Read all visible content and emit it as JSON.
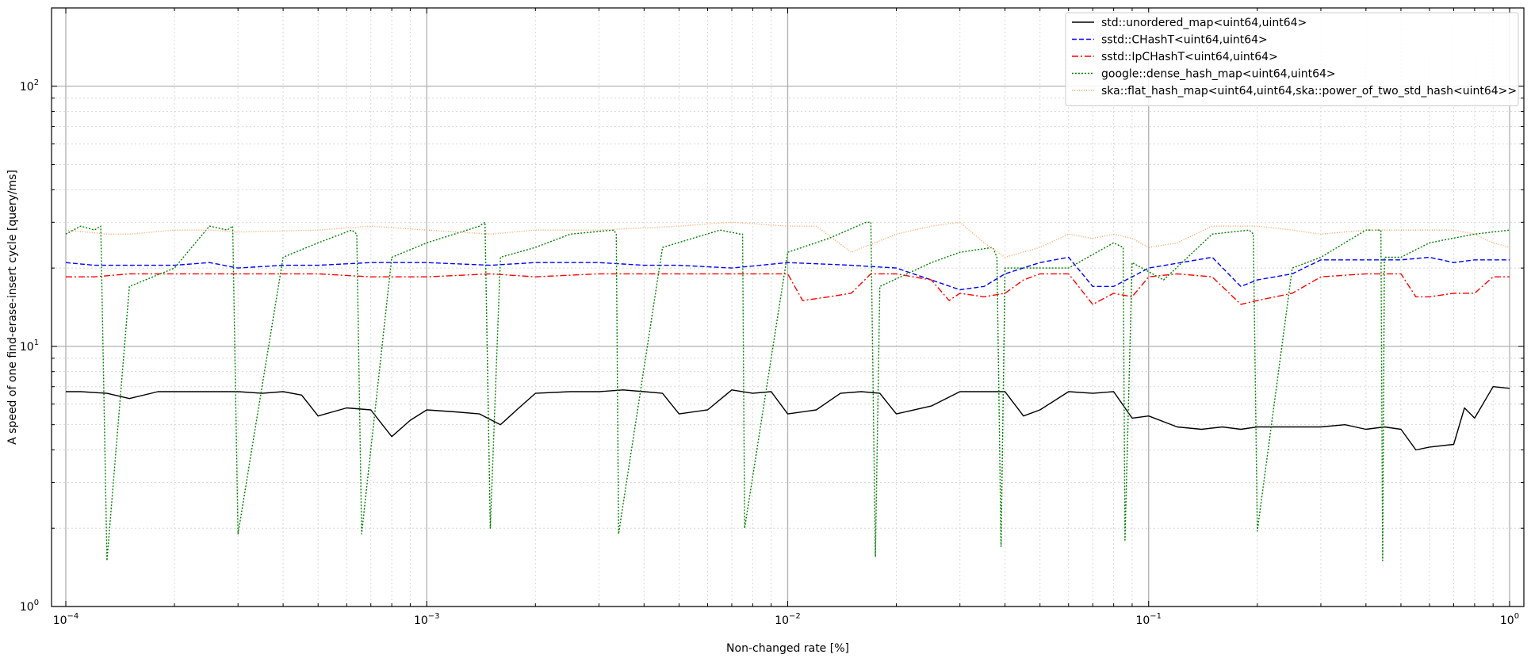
{
  "chart_data": {
    "type": "line",
    "title": "",
    "xlabel": "Non-changed rate [%]",
    "ylabel": "A speed of one find-erase-insert cycle [query/ms]",
    "x_scale": "log",
    "y_scale": "log",
    "xlim": [
      0.0001,
      1
    ],
    "ylim": [
      1,
      200
    ],
    "grid": true,
    "legend_position": "top-right",
    "x_ticks": [
      {
        "value": 0.0001,
        "base": "10",
        "exp": "−4"
      },
      {
        "value": 0.001,
        "base": "10",
        "exp": "−3"
      },
      {
        "value": 0.01,
        "base": "10",
        "exp": "−2"
      },
      {
        "value": 0.1,
        "base": "10",
        "exp": "−1"
      },
      {
        "value": 1,
        "base": "10",
        "exp": "0"
      }
    ],
    "y_ticks": [
      {
        "value": 1,
        "base": "10",
        "exp": "0"
      },
      {
        "value": 10,
        "base": "10",
        "exp": "1"
      },
      {
        "value": 100,
        "base": "10",
        "exp": "2"
      }
    ],
    "series": [
      {
        "name": "std::unordered_map<uint64,uint64>",
        "color": "#000000",
        "dash": "",
        "x": [
          0.0001,
          0.00011,
          0.00013,
          0.00015,
          0.00018,
          0.0002,
          0.00025,
          0.0003,
          0.00035,
          0.0004,
          0.00045,
          0.0005,
          0.0006,
          0.0007,
          0.0008,
          0.0009,
          0.001,
          0.0012,
          0.0014,
          0.0016,
          0.0018,
          0.002,
          0.0025,
          0.003,
          0.0035,
          0.004,
          0.0045,
          0.005,
          0.006,
          0.007,
          0.008,
          0.009,
          0.01,
          0.012,
          0.014,
          0.016,
          0.018,
          0.02,
          0.025,
          0.03,
          0.035,
          0.04,
          0.045,
          0.05,
          0.06,
          0.07,
          0.08,
          0.09,
          0.1,
          0.12,
          0.14,
          0.16,
          0.18,
          0.2,
          0.25,
          0.3,
          0.35,
          0.4,
          0.45,
          0.5,
          0.55,
          0.6,
          0.7,
          0.75,
          0.8,
          0.9,
          1.0
        ],
        "y": [
          6.7,
          6.7,
          6.6,
          6.3,
          6.7,
          6.7,
          6.7,
          6.7,
          6.6,
          6.7,
          6.5,
          5.4,
          5.8,
          5.7,
          4.5,
          5.2,
          5.7,
          5.6,
          5.5,
          5.0,
          5.8,
          6.6,
          6.7,
          6.7,
          6.8,
          6.7,
          6.6,
          5.5,
          5.7,
          6.8,
          6.6,
          6.7,
          5.5,
          5.7,
          6.6,
          6.7,
          6.6,
          5.5,
          5.9,
          6.7,
          6.7,
          6.7,
          5.4,
          5.7,
          6.7,
          6.6,
          6.7,
          5.3,
          5.4,
          4.9,
          4.8,
          4.9,
          4.8,
          4.9,
          4.9,
          4.9,
          5.0,
          4.8,
          4.9,
          4.8,
          4.0,
          4.1,
          4.2,
          5.8,
          5.3,
          7.0,
          6.9
        ]
      },
      {
        "name": "sstd::CHashT<uint64,uint64>",
        "color": "#0000ff",
        "dash": "6,3",
        "x": [
          0.0001,
          0.00012,
          0.00015,
          0.0002,
          0.00025,
          0.0003,
          0.0004,
          0.0005,
          0.0007,
          0.001,
          0.0015,
          0.002,
          0.003,
          0.004,
          0.005,
          0.007,
          0.01,
          0.015,
          0.02,
          0.025,
          0.03,
          0.035,
          0.04,
          0.05,
          0.06,
          0.07,
          0.08,
          0.09,
          0.1,
          0.15,
          0.18,
          0.2,
          0.25,
          0.3,
          0.4,
          0.5,
          0.6,
          0.7,
          0.8,
          0.9,
          1.0
        ],
        "y": [
          21,
          20.5,
          20.5,
          20.5,
          21,
          20,
          20.5,
          20.5,
          21,
          21,
          20.5,
          21,
          21,
          20.5,
          20.5,
          20,
          21,
          20.5,
          20,
          18,
          16.5,
          17,
          19,
          21,
          22,
          17,
          17,
          18.5,
          20,
          22,
          17,
          18,
          19,
          21.5,
          21.5,
          21.5,
          22,
          21,
          21.5,
          21.5,
          21.5
        ]
      },
      {
        "name": "sstd::IpCHashT<uint64,uint64>",
        "color": "#ff0000",
        "dash": "8,3,2,3",
        "x": [
          0.0001,
          0.00012,
          0.00015,
          0.0002,
          0.0003,
          0.0004,
          0.0005,
          0.0007,
          0.001,
          0.0015,
          0.002,
          0.003,
          0.004,
          0.005,
          0.007,
          0.01,
          0.011,
          0.013,
          0.015,
          0.017,
          0.02,
          0.025,
          0.028,
          0.03,
          0.035,
          0.04,
          0.045,
          0.05,
          0.06,
          0.07,
          0.08,
          0.09,
          0.1,
          0.12,
          0.15,
          0.18,
          0.2,
          0.25,
          0.3,
          0.4,
          0.5,
          0.55,
          0.6,
          0.7,
          0.8,
          0.9,
          1.0
        ],
        "y": [
          18.5,
          18.5,
          19,
          19,
          19,
          19,
          19,
          18.5,
          18.5,
          19,
          18.5,
          19,
          19,
          19,
          19,
          19,
          15,
          15.5,
          16,
          19,
          19,
          18,
          15,
          16,
          15.5,
          16,
          18,
          19,
          19,
          14.5,
          16,
          15.5,
          18.5,
          19,
          18.5,
          14.5,
          15,
          16,
          18.5,
          19,
          19,
          15.5,
          15.5,
          16,
          16,
          18.5,
          18.5
        ]
      },
      {
        "name": "google::dense_hash_map<uint64,uint64>",
        "color": "#008000",
        "dash": "2,2",
        "x": [
          0.0001,
          0.00011,
          0.00012,
          0.000125,
          0.00013,
          0.00015,
          0.0002,
          0.00025,
          0.00028,
          0.00029,
          0.0003,
          0.0004,
          0.0005,
          0.00062,
          0.00064,
          0.00066,
          0.0008,
          0.001,
          0.0014,
          0.00145,
          0.0015,
          0.0016,
          0.002,
          0.0025,
          0.0033,
          0.00335,
          0.0034,
          0.0045,
          0.0065,
          0.0074,
          0.0075,
          0.0076,
          0.01,
          0.013,
          0.0165,
          0.017,
          0.0175,
          0.018,
          0.025,
          0.03,
          0.037,
          0.038,
          0.039,
          0.04,
          0.06,
          0.08,
          0.085,
          0.086,
          0.09,
          0.11,
          0.15,
          0.19,
          0.195,
          0.2,
          0.25,
          0.3,
          0.4,
          0.44,
          0.445,
          0.45,
          0.5,
          0.6,
          0.8,
          1.0
        ],
        "y": [
          27,
          29,
          28,
          29,
          1.5,
          17,
          20,
          29,
          28,
          29,
          1.9,
          22,
          25,
          28,
          27,
          1.9,
          22,
          25,
          29,
          30,
          2.0,
          22,
          24,
          27,
          28,
          27,
          1.9,
          24,
          28,
          27,
          27,
          2.0,
          23,
          26,
          30,
          30,
          1.55,
          17,
          21,
          23,
          24,
          22,
          1.7,
          20,
          20,
          25,
          24,
          1.8,
          21,
          18,
          27,
          28,
          27,
          1.95,
          20,
          22,
          28,
          28,
          1.5,
          22,
          22,
          25,
          27,
          28
        ]
      },
      {
        "name": "ska::flat_hash_map<uint64,uint64,ska::power_of_two_std_hash<uint64>>",
        "color": "#ffa060",
        "dash": "1,2",
        "x": [
          0.0001,
          0.00013,
          0.00015,
          0.0002,
          0.00025,
          0.0003,
          0.0005,
          0.0007,
          0.001,
          0.0015,
          0.002,
          0.003,
          0.005,
          0.007,
          0.01,
          0.012,
          0.015,
          0.02,
          0.025,
          0.03,
          0.035,
          0.04,
          0.05,
          0.06,
          0.07,
          0.08,
          0.09,
          0.1,
          0.12,
          0.15,
          0.2,
          0.25,
          0.3,
          0.4,
          0.5,
          0.6,
          0.7,
          0.8,
          0.9,
          1.0
        ],
        "y": [
          28,
          27,
          27,
          28,
          28,
          27.5,
          28,
          29,
          28,
          27,
          28,
          28,
          29,
          30,
          29,
          29,
          23,
          27,
          29,
          30,
          25,
          22,
          24,
          27,
          26,
          27,
          26,
          24,
          25,
          29,
          29,
          28,
          27,
          28,
          28,
          28,
          28,
          27,
          25,
          24
        ]
      }
    ]
  }
}
